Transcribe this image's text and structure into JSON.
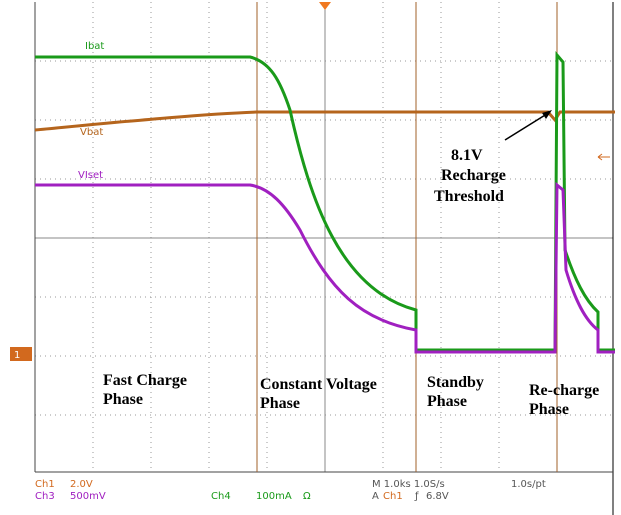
{
  "traces": {
    "labels": [
      "Ibat",
      "Vbat",
      "VIset"
    ]
  },
  "marker": "1",
  "annotation": [
    "8.1V",
    "Recharge",
    "Threshold"
  ],
  "phases": [
    [
      "Fast Charge",
      "Phase"
    ],
    [
      "Constant Voltage",
      "Phase"
    ],
    [
      "Standby",
      "Phase"
    ],
    [
      "Re-charge",
      "Phase"
    ]
  ],
  "status": {
    "ch1": "Ch1",
    "ch1_scale": "2.0V",
    "ch3": "Ch3",
    "ch3_scale": "500mV",
    "ch4": "Ch4",
    "ch4_scale": "100mA",
    "ch4_unit": "Ω",
    "timebase": "M 1.0ks 1.0S/s",
    "trig_mode": "A",
    "trig_src": "Ch1",
    "trig_slope": "ƒ",
    "trig_level": "6.8V",
    "rate": "1.0s/pt"
  }
}
